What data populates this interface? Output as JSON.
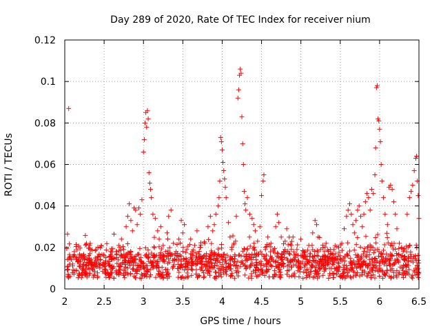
{
  "chart_data": {
    "type": "scatter",
    "title": "Day 289 of 2020, Rate Of TEC Index for receiver nium",
    "xlabel": "GPS time / hours",
    "ylabel": "ROTI / TECUs",
    "xlim": [
      2.0,
      6.5
    ],
    "ylim": [
      0,
      0.12
    ],
    "x_ticks": [
      2,
      2.5,
      3,
      3.5,
      4,
      4.5,
      5,
      5.5,
      6,
      6.5
    ],
    "x_tick_labels": [
      "2",
      "2.5",
      "3",
      "3.5",
      "4",
      "4.5",
      "5",
      "5.5",
      "6",
      "6.5"
    ],
    "y_ticks": [
      0,
      0.02,
      0.04,
      0.06,
      0.08,
      0.1,
      0.12
    ],
    "y_tick_labels": [
      "0",
      "0.02",
      "0.04",
      "0.06",
      "0.08",
      "0.1",
      "0.12"
    ],
    "grid": true,
    "marker": "+",
    "color": "#ff0000",
    "series": [
      {
        "name": "ROTI",
        "points": [
          [
            2.05,
            0.087
          ],
          [
            2.07,
            0.015
          ],
          [
            2.1,
            0.012
          ],
          [
            2.12,
            0.018
          ],
          [
            2.15,
            0.009
          ],
          [
            2.18,
            0.013
          ],
          [
            2.2,
            0.016
          ],
          [
            2.22,
            0.011
          ],
          [
            2.25,
            0.014
          ],
          [
            2.28,
            0.008
          ],
          [
            2.3,
            0.012
          ],
          [
            2.32,
            0.017
          ],
          [
            2.35,
            0.01
          ],
          [
            2.38,
            0.013
          ],
          [
            2.4,
            0.019
          ],
          [
            2.42,
            0.006
          ],
          [
            2.45,
            0.014
          ],
          [
            2.48,
            0.012
          ],
          [
            2.5,
            0.016
          ],
          [
            2.52,
            0.009
          ],
          [
            2.55,
            0.013
          ],
          [
            2.58,
            0.018
          ],
          [
            2.6,
            0.011
          ],
          [
            2.62,
            0.015
          ],
          [
            2.65,
            0.008
          ],
          [
            2.68,
            0.014
          ],
          [
            2.7,
            0.02
          ],
          [
            2.72,
            0.024
          ],
          [
            2.75,
            0.019
          ],
          [
            2.78,
            0.03
          ],
          [
            2.8,
            0.035
          ],
          [
            2.82,
            0.041
          ],
          [
            2.84,
            0.033
          ],
          [
            2.86,
            0.028
          ],
          [
            2.88,
            0.039
          ],
          [
            2.9,
            0.038
          ],
          [
            2.92,
            0.031
          ],
          [
            2.94,
            0.039
          ],
          [
            2.96,
            0.036
          ],
          [
            2.98,
            0.043
          ],
          [
            3.0,
            0.066
          ],
          [
            3.01,
            0.072
          ],
          [
            3.02,
            0.08
          ],
          [
            3.03,
            0.085
          ],
          [
            3.04,
            0.078
          ],
          [
            3.05,
            0.086
          ],
          [
            3.06,
            0.082
          ],
          [
            3.07,
            0.056
          ],
          [
            3.08,
            0.051
          ],
          [
            3.09,
            0.048
          ],
          [
            3.1,
            0.044
          ],
          [
            3.12,
            0.036
          ],
          [
            3.15,
            0.034
          ],
          [
            3.18,
            0.028
          ],
          [
            3.2,
            0.024
          ],
          [
            3.22,
            0.03
          ],
          [
            3.25,
            0.021
          ],
          [
            3.28,
            0.018
          ],
          [
            3.3,
            0.027
          ],
          [
            3.32,
            0.035
          ],
          [
            3.35,
            0.038
          ],
          [
            3.38,
            0.022
          ],
          [
            3.4,
            0.017
          ],
          [
            3.42,
            0.014
          ],
          [
            3.45,
            0.024
          ],
          [
            3.48,
            0.033
          ],
          [
            3.5,
            0.027
          ],
          [
            3.52,
            0.031
          ],
          [
            3.55,
            0.019
          ],
          [
            3.58,
            0.013
          ],
          [
            3.6,
            0.024
          ],
          [
            3.62,
            0.018
          ],
          [
            3.65,
            0.021
          ],
          [
            3.68,
            0.028
          ],
          [
            3.7,
            0.015
          ],
          [
            3.72,
            0.02
          ],
          [
            3.75,
            0.012
          ],
          [
            3.78,
            0.022
          ],
          [
            3.8,
            0.017
          ],
          [
            3.82,
            0.03
          ],
          [
            3.85,
            0.035
          ],
          [
            3.88,
            0.028
          ],
          [
            3.9,
            0.031
          ],
          [
            3.92,
            0.036
          ],
          [
            3.95,
            0.04
          ],
          [
            3.96,
            0.044
          ],
          [
            3.97,
            0.052
          ],
          [
            3.98,
            0.073
          ],
          [
            3.99,
            0.071
          ],
          [
            4.0,
            0.067
          ],
          [
            4.01,
            0.061
          ],
          [
            4.02,
            0.057
          ],
          [
            4.03,
            0.053
          ],
          [
            4.04,
            0.049
          ],
          [
            4.05,
            0.044
          ],
          [
            4.08,
            0.032
          ],
          [
            4.1,
            0.025
          ],
          [
            4.12,
            0.019
          ],
          [
            4.15,
            0.022
          ],
          [
            4.18,
            0.035
          ],
          [
            4.2,
            0.092
          ],
          [
            4.21,
            0.096
          ],
          [
            4.22,
            0.103
          ],
          [
            4.23,
            0.106
          ],
          [
            4.24,
            0.104
          ],
          [
            4.25,
            0.083
          ],
          [
            4.26,
            0.07
          ],
          [
            4.27,
            0.06
          ],
          [
            4.28,
            0.047
          ],
          [
            4.29,
            0.041
          ],
          [
            4.3,
            0.038
          ],
          [
            4.32,
            0.044
          ],
          [
            4.35,
            0.036
          ],
          [
            4.38,
            0.034
          ],
          [
            4.4,
            0.031
          ],
          [
            4.42,
            0.028
          ],
          [
            4.45,
            0.023
          ],
          [
            4.48,
            0.03
          ],
          [
            4.5,
            0.045
          ],
          [
            4.52,
            0.052
          ],
          [
            4.53,
            0.055
          ],
          [
            4.55,
            0.019
          ],
          [
            4.58,
            0.025
          ],
          [
            4.6,
            0.014
          ],
          [
            4.62,
            0.022
          ],
          [
            4.65,
            0.018
          ],
          [
            4.68,
            0.03
          ],
          [
            4.7,
            0.036
          ],
          [
            4.72,
            0.032
          ],
          [
            4.75,
            0.025
          ],
          [
            4.78,
            0.018
          ],
          [
            4.8,
            0.023
          ],
          [
            4.82,
            0.029
          ],
          [
            4.85,
            0.017
          ],
          [
            4.88,
            0.021
          ],
          [
            4.9,
            0.025
          ],
          [
            4.92,
            0.014
          ],
          [
            4.95,
            0.019
          ],
          [
            4.98,
            0.011
          ],
          [
            5.0,
            0.016
          ],
          [
            5.02,
            0.013
          ],
          [
            5.05,
            0.018
          ],
          [
            5.08,
            0.012
          ],
          [
            5.1,
            0.021
          ],
          [
            5.12,
            0.017
          ],
          [
            5.15,
            0.027
          ],
          [
            5.18,
            0.033
          ],
          [
            5.2,
            0.031
          ],
          [
            5.22,
            0.025
          ],
          [
            5.25,
            0.019
          ],
          [
            5.28,
            0.014
          ],
          [
            5.3,
            0.018
          ],
          [
            5.32,
            0.022
          ],
          [
            5.35,
            0.013
          ],
          [
            5.38,
            0.017
          ],
          [
            5.4,
            0.012
          ],
          [
            5.42,
            0.019
          ],
          [
            5.45,
            0.014
          ],
          [
            5.48,
            0.02
          ],
          [
            5.5,
            0.016
          ],
          [
            5.52,
            0.022
          ],
          [
            5.55,
            0.029
          ],
          [
            5.58,
            0.035
          ],
          [
            5.6,
            0.038
          ],
          [
            5.62,
            0.041
          ],
          [
            5.64,
            0.036
          ],
          [
            5.66,
            0.031
          ],
          [
            5.68,
            0.027
          ],
          [
            5.7,
            0.033
          ],
          [
            5.72,
            0.038
          ],
          [
            5.74,
            0.04
          ],
          [
            5.76,
            0.035
          ],
          [
            5.78,
            0.03
          ],
          [
            5.8,
            0.036
          ],
          [
            5.82,
            0.042
          ],
          [
            5.84,
            0.046
          ],
          [
            5.86,
            0.044
          ],
          [
            5.88,
            0.038
          ],
          [
            5.9,
            0.048
          ],
          [
            5.92,
            0.046
          ],
          [
            5.94,
            0.055
          ],
          [
            5.95,
            0.068
          ],
          [
            5.96,
            0.097
          ],
          [
            5.97,
            0.098
          ],
          [
            5.98,
            0.082
          ],
          [
            5.99,
            0.081
          ],
          [
            6.0,
            0.077
          ],
          [
            6.01,
            0.071
          ],
          [
            6.02,
            0.06
          ],
          [
            6.03,
            0.052
          ],
          [
            6.05,
            0.044
          ],
          [
            6.07,
            0.036
          ],
          [
            6.1,
            0.031
          ],
          [
            6.12,
            0.049
          ],
          [
            6.14,
            0.05
          ],
          [
            6.16,
            0.048
          ],
          [
            6.18,
            0.042
          ],
          [
            6.2,
            0.036
          ],
          [
            6.22,
            0.029
          ],
          [
            6.25,
            0.022
          ],
          [
            6.28,
            0.02
          ],
          [
            6.3,
            0.018
          ],
          [
            6.32,
            0.014
          ],
          [
            6.35,
            0.036
          ],
          [
            6.38,
            0.044
          ],
          [
            6.4,
            0.047
          ],
          [
            6.42,
            0.05
          ],
          [
            6.44,
            0.057
          ],
          [
            6.46,
            0.063
          ],
          [
            6.47,
            0.064
          ],
          [
            6.48,
            0.052
          ],
          [
            6.49,
            0.045
          ],
          [
            6.5,
            0.034
          ]
        ]
      }
    ]
  }
}
